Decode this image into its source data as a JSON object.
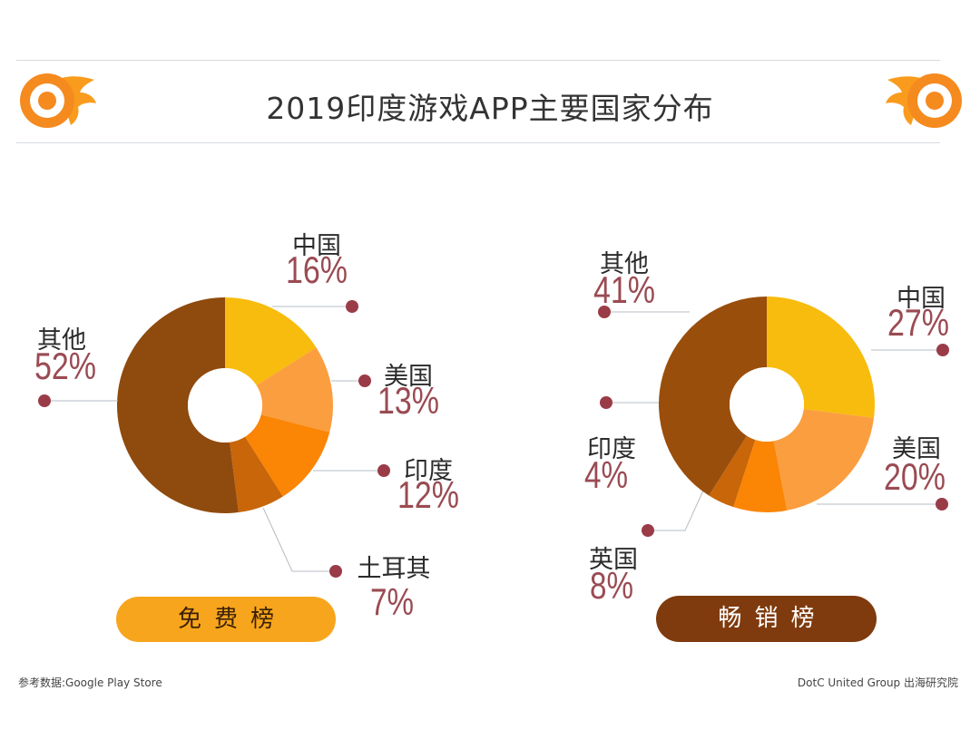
{
  "title": "2019印度游戏APP主要国家分布",
  "labels": {
    "free_chart": "免费榜",
    "sales_chart": "畅销榜"
  },
  "footer": {
    "source": "参考数据:Google Play Store",
    "credit": "DotC United Group 出海研究院"
  },
  "colors": {
    "gold": "#f8bc0e",
    "light_orange": "#fb9e3f",
    "orange": "#fb8505",
    "mid_brown": "#c86609",
    "brown": "#8f4a0d",
    "dark_brown": "#9a4e0b",
    "percent_text": "#9a4b53",
    "marker": "#9a3c48"
  },
  "chart_data": [
    {
      "type": "pie",
      "title": "免费榜",
      "style": "donut",
      "slices": [
        {
          "label": "中国",
          "value": 16,
          "display": "16%"
        },
        {
          "label": "美国",
          "value": 13,
          "display": "13%"
        },
        {
          "label": "印度",
          "value": 12,
          "display": "12%"
        },
        {
          "label": "土耳其",
          "value": 7,
          "display": "7%"
        },
        {
          "label": "其他",
          "value": 52,
          "display": "52%"
        }
      ]
    },
    {
      "type": "pie",
      "title": "畅销榜",
      "style": "donut",
      "slices": [
        {
          "label": "中国",
          "value": 27,
          "display": "27%"
        },
        {
          "label": "美国",
          "value": 20,
          "display": "20%"
        },
        {
          "label": "英国",
          "value": 8,
          "display": "8%"
        },
        {
          "label": "印度",
          "value": 4,
          "display": "4%"
        },
        {
          "label": "其他",
          "value": 41,
          "display": "41%"
        }
      ]
    }
  ]
}
